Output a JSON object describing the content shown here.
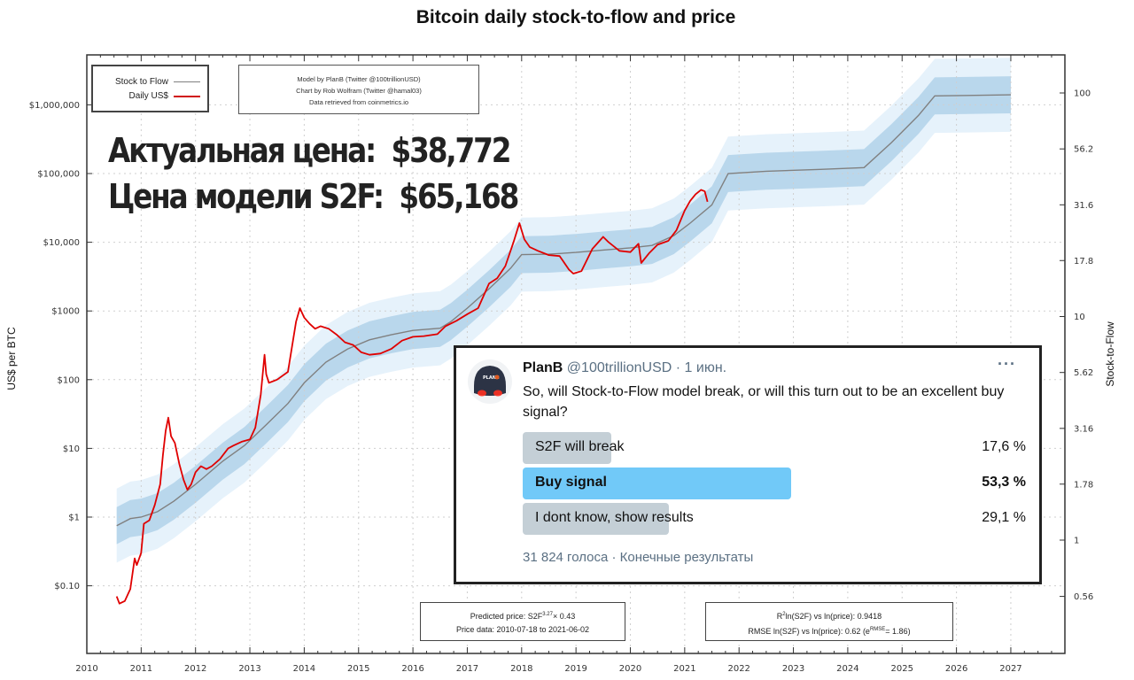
{
  "chart_data": {
    "type": "line",
    "title": "Bitcoin daily stock-to-flow and price",
    "xlabel": "",
    "ylabel": "US$ per BTC",
    "y2label": "Stock-to-Flow",
    "xlim": [
      2010,
      2027
    ],
    "ylim": [
      0.03,
      3000000
    ],
    "yscale": "log",
    "y2lim": [
      0.343,
      128
    ],
    "y2scale": "log",
    "grid": true,
    "legend_position": "top-left",
    "x_ticks": [
      "2010",
      "2011",
      "2012",
      "2013",
      "2014",
      "2015",
      "2016",
      "2017",
      "2018",
      "2019",
      "2020",
      "2021",
      "2022",
      "2023",
      "2024",
      "2025",
      "2026",
      "2027"
    ],
    "y_ticks": [
      {
        "value": 1000000,
        "label": "$1,000,000"
      },
      {
        "value": 100000,
        "label": "$100,000"
      },
      {
        "value": 10000,
        "label": "$10,000"
      },
      {
        "value": 1000,
        "label": "$1000"
      },
      {
        "value": 100,
        "label": "$100"
      },
      {
        "value": 10,
        "label": "$10"
      },
      {
        "value": 1,
        "label": "$1"
      },
      {
        "value": 0.1,
        "label": "$0.10"
      }
    ],
    "y2_ticks": [
      {
        "value": 100,
        "label": "100"
      },
      {
        "value": 56.2,
        "label": "56.2"
      },
      {
        "value": 31.6,
        "label": "31.6"
      },
      {
        "value": 17.8,
        "label": "17.8"
      },
      {
        "value": 10,
        "label": "10"
      },
      {
        "value": 5.62,
        "label": "5.62"
      },
      {
        "value": 3.16,
        "label": "3.16"
      },
      {
        "value": 1.78,
        "label": "1.78"
      },
      {
        "value": 1,
        "label": "1"
      },
      {
        "value": 0.56,
        "label": "0.56"
      }
    ],
    "legend": [
      {
        "name": "Stock to Flow",
        "color": "#808080"
      },
      {
        "name": "Daily US$",
        "color": "#e00000"
      }
    ],
    "band_colors": {
      "inner": "#b9d7ec",
      "outer": "#e6f2fb"
    },
    "band_sigma_factor": 1.86,
    "series": [
      {
        "name": "Stock to Flow",
        "unit": "US$ model price",
        "color": "#808080",
        "x": [
          2010.55,
          2010.8,
          2011.0,
          2011.3,
          2011.6,
          2012.0,
          2012.5,
          2012.9,
          2013.3,
          2013.7,
          2014.0,
          2014.4,
          2014.8,
          2015.2,
          2015.6,
          2016.0,
          2016.5,
          2016.7,
          2017.0,
          2017.4,
          2017.8,
          2018.0,
          2018.5,
          2019.0,
          2019.5,
          2020.0,
          2020.4,
          2020.8,
          2021.1,
          2021.5,
          2021.8,
          2022.5,
          2023.5,
          2024.3,
          2024.8,
          2025.3,
          2025.6,
          2026.2,
          2027.0
        ],
        "values": [
          0.75,
          0.95,
          1.0,
          1.2,
          1.7,
          3.0,
          6.5,
          11,
          22,
          45,
          90,
          180,
          280,
          380,
          450,
          520,
          560,
          700,
          1100,
          2100,
          4200,
          6600,
          6700,
          7100,
          7700,
          8300,
          9000,
          12500,
          19000,
          35000,
          100000,
          108000,
          115000,
          122000,
          280000,
          700000,
          1350000,
          1370000,
          1400000
        ]
      },
      {
        "name": "Daily US$",
        "unit": "US$",
        "color": "#e00000",
        "x": [
          2010.55,
          2010.6,
          2010.7,
          2010.8,
          2010.88,
          2010.92,
          2011.0,
          2011.05,
          2011.15,
          2011.25,
          2011.35,
          2011.4,
          2011.45,
          2011.5,
          2011.55,
          2011.62,
          2011.7,
          2011.78,
          2011.85,
          2011.92,
          2012.0,
          2012.1,
          2012.2,
          2012.3,
          2012.45,
          2012.6,
          2012.7,
          2012.85,
          2013.0,
          2013.1,
          2013.2,
          2013.27,
          2013.3,
          2013.35,
          2013.5,
          2013.7,
          2013.85,
          2013.92,
          2014.0,
          2014.1,
          2014.2,
          2014.3,
          2014.45,
          2014.6,
          2014.75,
          2014.9,
          2015.05,
          2015.2,
          2015.4,
          2015.6,
          2015.8,
          2016.0,
          2016.2,
          2016.45,
          2016.6,
          2016.8,
          2017.0,
          2017.2,
          2017.4,
          2017.55,
          2017.7,
          2017.85,
          2017.96,
          2018.05,
          2018.15,
          2018.3,
          2018.5,
          2018.7,
          2018.87,
          2018.95,
          2019.1,
          2019.3,
          2019.5,
          2019.6,
          2019.8,
          2020.0,
          2020.15,
          2020.2,
          2020.35,
          2020.5,
          2020.7,
          2020.85,
          2021.0,
          2021.1,
          2021.2,
          2021.3,
          2021.37,
          2021.42
        ],
        "values": [
          0.07,
          0.055,
          0.06,
          0.09,
          0.25,
          0.2,
          0.3,
          0.8,
          0.9,
          1.5,
          3,
          8,
          18,
          28,
          15,
          12,
          6,
          3.5,
          2.5,
          3,
          4.5,
          5.5,
          5,
          5.5,
          7,
          10,
          11,
          12.5,
          13.5,
          20,
          60,
          230,
          120,
          90,
          100,
          130,
          700,
          1100,
          800,
          650,
          550,
          600,
          550,
          450,
          350,
          320,
          250,
          230,
          240,
          280,
          370,
          420,
          430,
          460,
          600,
          720,
          900,
          1100,
          2500,
          3000,
          4500,
          10000,
          19000,
          11000,
          8500,
          7500,
          6500,
          6300,
          4000,
          3500,
          3800,
          8000,
          12000,
          10000,
          7500,
          7200,
          9500,
          5000,
          7000,
          9200,
          10500,
          15000,
          29000,
          40000,
          50000,
          58000,
          55000,
          38772
        ]
      }
    ],
    "annotations": {
      "current_price": 38772,
      "model_price": 65168
    }
  },
  "legend_labels": {
    "s2f": "Stock to Flow",
    "price": "Daily US$"
  },
  "credits": [
    "Model by PlanB (Twitter @100trillionUSD)",
    "Chart by Rob Wolfram (Twitter @hamal03)",
    "Data retrieved from coinmetrics.io"
  ],
  "overlay": {
    "actual_label": "Актуальная цена:",
    "actual_value": "$38,772",
    "model_label": "Цена модели S2F:",
    "model_value": "$65,168"
  },
  "stats_left": {
    "line1_prefix": "Predicted price: S2F",
    "line1_exp": "3.27",
    "line1_suffix": "× 0.43",
    "line2": "Price data: 2010-07-18 to 2021-06-02"
  },
  "stats_right": {
    "line1_r": "R",
    "line1_sup": "2",
    "line1_rest": "ln(S2F) vs ln(price): 0.9418",
    "line2_prefix": "RMSE ln(S2F) vs ln(price): 0.62 (e",
    "line2_sup": "RMSE",
    "line2_suffix": "= 1.86)"
  },
  "tweet": {
    "author": "PlanB",
    "handle": "@100trillionUSD",
    "date": "· 1 июн.",
    "more": "···",
    "text": "So, will Stock-to-Flow model break, or will this turn out to be an excellent buy signal?",
    "avatar_label": "PLANB",
    "poll": [
      {
        "label": "S2F will break",
        "percent_text": "17,6 %",
        "percent": 17.6,
        "winner": false
      },
      {
        "label": "Buy signal",
        "percent_text": "53,3 %",
        "percent": 53.3,
        "winner": true
      },
      {
        "label": "I dont know, show results",
        "percent_text": "29,1 %",
        "percent": 29.1,
        "winner": false
      }
    ],
    "footer": "31 824 голоса · Конечные результаты"
  },
  "colors": {
    "price_line": "#e00000",
    "s2f_line": "#808080",
    "poll_winner": "#71c9f8",
    "poll_other": "#c4cfd6",
    "muted_text": "#5b7083"
  }
}
